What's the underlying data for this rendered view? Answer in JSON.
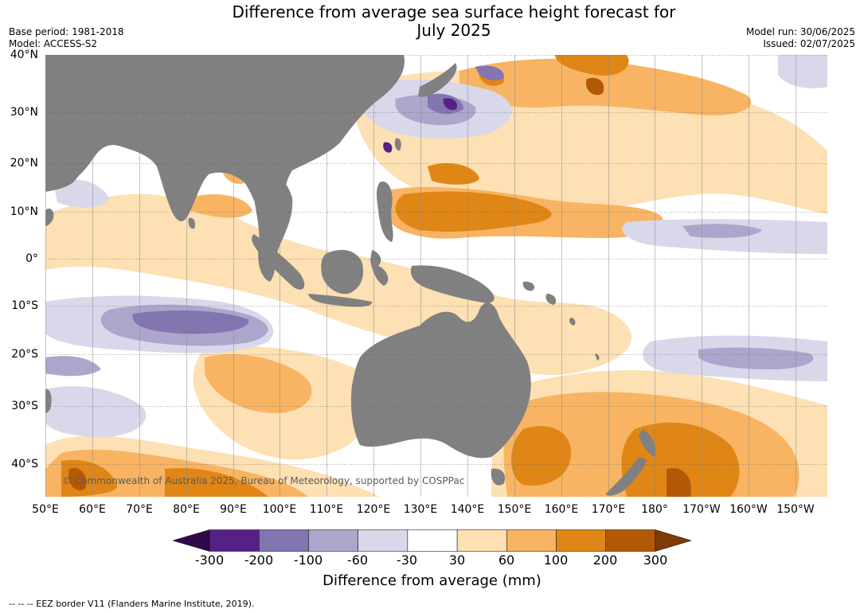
{
  "title_line1": "Difference from average sea surface height forecast for",
  "title_line2": "July 2025",
  "meta": {
    "base_period": "Base period: 1981-2018",
    "model": "Model: ACCESS-S2",
    "model_run": "Model run: 30/06/2025",
    "issued": "Issued: 02/07/2025"
  },
  "lat_labels": [
    "40°N",
    "30°N",
    "20°N",
    "10°N",
    "0°",
    "10°S",
    "20°S",
    "30°S",
    "40°S"
  ],
  "lon_labels": [
    "50°E",
    "60°E",
    "70°E",
    "80°E",
    "90°E",
    "100°E",
    "110°E",
    "120°E",
    "130°E",
    "140°E",
    "150°E",
    "160°E",
    "170°E",
    "180°",
    "170°W",
    "160°W",
    "150°W"
  ],
  "copyright": "© Commonwealth of Australia 2025, Bureau of Meteorology, supported by COSPPac",
  "colorbar": {
    "title": "Difference from average (mm)",
    "tick_labels": [
      "-300",
      "-200",
      "-100",
      "-60",
      "-30",
      "30",
      "60",
      "100",
      "200",
      "300"
    ],
    "colors": [
      "#562186",
      "#8275b0",
      "#ada6cc",
      "#d8d8ea",
      "#ffffff",
      "#fde0b3",
      "#f8b463",
      "#e08617",
      "#b35805"
    ],
    "under_color": "#2e0a4a",
    "over_color": "#7f3b08"
  },
  "land_color": "#808080",
  "footnote": "--  --  -- EEZ border V11 (Flanders Marine Institute, 2019)."
}
